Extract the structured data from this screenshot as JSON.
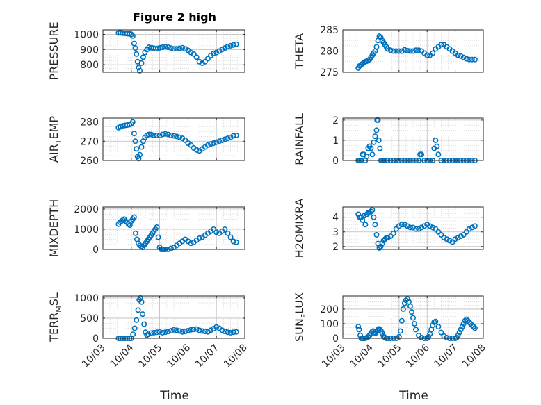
{
  "figure": {
    "title": "Figure 2 high",
    "xlabel": "Time",
    "x_ticks": [
      "10/03",
      "10/04",
      "10/05",
      "10/06",
      "10/07",
      "10/08"
    ]
  },
  "colors": {
    "marker": "#0072BD",
    "axis": "#262626",
    "grid": "#bdbdbd"
  },
  "chart_data": [
    {
      "type": "scatter",
      "ylabel": "PRESSURE",
      "ylim": [
        750,
        1030
      ],
      "yticks": [
        800,
        900,
        1000
      ],
      "grid": true,
      "xrange": [
        0,
        5
      ],
      "xticks": [
        0,
        1,
        2,
        3,
        4,
        5
      ],
      "x": [
        0.55,
        0.62,
        0.7,
        0.78,
        0.86,
        0.94,
        1.0,
        1.05,
        1.1,
        1.14,
        1.18,
        1.22,
        1.26,
        1.3,
        1.36,
        1.42,
        1.48,
        1.55,
        1.62,
        1.7,
        1.78,
        1.86,
        1.94,
        2.02,
        2.1,
        2.2,
        2.3,
        2.4,
        2.5,
        2.6,
        2.7,
        2.8,
        2.9,
        3.0,
        3.1,
        3.2,
        3.3,
        3.4,
        3.5,
        3.6,
        3.7,
        3.8,
        3.9,
        4.0,
        4.1,
        4.2,
        4.3,
        4.4,
        4.5,
        4.6,
        4.7
      ],
      "y": [
        1010,
        1010,
        1008,
        1007,
        1005,
        1003,
        1000,
        990,
        940,
        910,
        870,
        820,
        780,
        760,
        810,
        850,
        880,
        900,
        915,
        912,
        910,
        905,
        908,
        912,
        915,
        918,
        915,
        910,
        905,
        905,
        908,
        912,
        905,
        895,
        880,
        870,
        850,
        820,
        810,
        820,
        840,
        860,
        875,
        880,
        890,
        900,
        910,
        920,
        925,
        930,
        935
      ],
      "point_label": "pressure-point"
    },
    {
      "type": "scatter",
      "ylabel": "THETA",
      "ylim": [
        275,
        285
      ],
      "yticks": [
        275,
        280,
        285
      ],
      "grid": true,
      "xrange": [
        0,
        5
      ],
      "xticks": [
        0,
        1,
        2,
        3,
        4,
        5
      ],
      "x": [
        0.55,
        0.6,
        0.65,
        0.7,
        0.75,
        0.8,
        0.85,
        0.9,
        0.95,
        1.0,
        1.05,
        1.1,
        1.15,
        1.2,
        1.25,
        1.3,
        1.35,
        1.4,
        1.45,
        1.5,
        1.55,
        1.6,
        1.7,
        1.8,
        1.9,
        2.0,
        2.1,
        2.2,
        2.3,
        2.4,
        2.5,
        2.6,
        2.7,
        2.8,
        2.9,
        3.0,
        3.1,
        3.2,
        3.3,
        3.4,
        3.5,
        3.6,
        3.7,
        3.8,
        3.9,
        4.0,
        4.1,
        4.2,
        4.3,
        4.4,
        4.5,
        4.6,
        4.7
      ],
      "y": [
        276,
        276.5,
        276.8,
        277,
        277.3,
        277.5,
        277.6,
        277.8,
        278,
        278.5,
        279,
        279.5,
        280,
        281,
        282.5,
        283.5,
        283.2,
        282.5,
        282,
        281.5,
        281,
        280.5,
        280.2,
        280,
        280,
        280,
        280,
        280.3,
        280.1,
        280,
        280,
        280.2,
        280.2,
        280,
        279.5,
        279,
        279,
        279.5,
        280.5,
        281,
        281.5,
        281.5,
        281,
        280.5,
        280,
        279.5,
        279,
        278.8,
        278.5,
        278.2,
        278,
        278,
        278
      ],
      "point_label": "theta-point"
    },
    {
      "type": "scatter",
      "ylabel": "AIR_TEMP",
      "ylim": [
        260,
        282
      ],
      "yticks": [
        260,
        270,
        280
      ],
      "grid": true,
      "xrange": [
        0,
        5
      ],
      "xticks": [
        0,
        1,
        2,
        3,
        4,
        5
      ],
      "x": [
        0.55,
        0.62,
        0.7,
        0.78,
        0.86,
        0.94,
        1.0,
        1.05,
        1.1,
        1.14,
        1.18,
        1.22,
        1.26,
        1.3,
        1.36,
        1.42,
        1.48,
        1.55,
        1.62,
        1.7,
        1.8,
        1.9,
        2.0,
        2.1,
        2.2,
        2.3,
        2.4,
        2.5,
        2.6,
        2.7,
        2.8,
        2.9,
        3.0,
        3.1,
        3.2,
        3.3,
        3.4,
        3.5,
        3.6,
        3.7,
        3.8,
        3.9,
        4.0,
        4.1,
        4.2,
        4.3,
        4.4,
        4.5,
        4.6,
        4.7
      ],
      "y": [
        277,
        277.5,
        278,
        278.2,
        278.4,
        278.6,
        279,
        280,
        274,
        270,
        266,
        262,
        261,
        263,
        267,
        270,
        272,
        273,
        273.5,
        273.5,
        273,
        273,
        273,
        273.5,
        273.8,
        273.5,
        273,
        272.8,
        272.5,
        272,
        271.5,
        270.5,
        269,
        268,
        266.5,
        265.5,
        265,
        266,
        267,
        268,
        268.5,
        269,
        269.5,
        270,
        270.5,
        271,
        271.5,
        272,
        272.8,
        273
      ],
      "point_label": "air-temp-point"
    },
    {
      "type": "scatter",
      "ylabel": "RAINFALL",
      "ylim": [
        0,
        2.1
      ],
      "yticks": [
        0,
        1,
        2
      ],
      "grid": true,
      "xrange": [
        0,
        5
      ],
      "xticks": [
        0,
        1,
        2,
        3,
        4,
        5
      ],
      "x": [
        0.55,
        0.6,
        0.65,
        0.7,
        0.75,
        0.8,
        0.85,
        0.9,
        0.95,
        1.0,
        1.05,
        1.1,
        1.15,
        1.2,
        1.22,
        1.25,
        1.28,
        1.32,
        1.36,
        1.4,
        1.45,
        1.5,
        1.6,
        1.7,
        1.8,
        1.9,
        2.0,
        2.1,
        2.2,
        2.3,
        2.4,
        2.5,
        2.6,
        2.7,
        2.75,
        2.8,
        2.9,
        3.0,
        3.1,
        3.2,
        3.25,
        3.3,
        3.35,
        3.4,
        3.5,
        3.6,
        3.7,
        3.8,
        3.9,
        4.0,
        4.1,
        4.2,
        4.3,
        4.4,
        4.5,
        4.6,
        4.7
      ],
      "y": [
        0,
        0,
        0,
        0.3,
        0.3,
        0,
        0.2,
        0.6,
        0.7,
        0.6,
        0.3,
        0.9,
        1.2,
        1.5,
        2.0,
        2.0,
        1.0,
        0.6,
        0,
        0,
        0,
        0,
        0,
        0,
        0,
        0,
        0,
        0,
        0,
        0,
        0,
        0,
        0,
        0,
        0.3,
        0.3,
        0,
        0,
        0,
        0,
        0.6,
        1.0,
        0.7,
        0.3,
        0,
        0,
        0,
        0,
        0,
        0,
        0,
        0,
        0,
        0,
        0,
        0,
        0
      ],
      "point_label": "rainfall-point"
    },
    {
      "type": "scatter",
      "ylabel": "MIXDEPTH",
      "ylim": [
        0,
        2100
      ],
      "yticks": [
        0,
        1000,
        2000
      ],
      "grid": true,
      "xrange": [
        0,
        5
      ],
      "xticks": [
        0,
        1,
        2,
        3,
        4,
        5
      ],
      "x": [
        0.55,
        0.6,
        0.65,
        0.7,
        0.75,
        0.8,
        0.85,
        0.9,
        0.95,
        1.0,
        1.05,
        1.1,
        1.15,
        1.2,
        1.25,
        1.3,
        1.35,
        1.4,
        1.45,
        1.5,
        1.55,
        1.6,
        1.65,
        1.7,
        1.75,
        1.8,
        1.85,
        1.9,
        1.95,
        2.0,
        2.05,
        2.1,
        2.15,
        2.2,
        2.3,
        2.4,
        2.5,
        2.6,
        2.7,
        2.8,
        2.9,
        3.0,
        3.1,
        3.2,
        3.3,
        3.4,
        3.5,
        3.6,
        3.7,
        3.8,
        3.9,
        4.0,
        4.1,
        4.2,
        4.3,
        4.4,
        4.5,
        4.6,
        4.7
      ],
      "y": [
        1250,
        1350,
        1400,
        1450,
        1500,
        1400,
        1350,
        1250,
        1200,
        1400,
        1500,
        1600,
        800,
        500,
        300,
        200,
        150,
        100,
        200,
        300,
        400,
        500,
        600,
        700,
        800,
        900,
        1000,
        1100,
        600,
        100,
        0,
        0,
        0,
        0,
        0,
        50,
        100,
        200,
        300,
        400,
        500,
        400,
        300,
        350,
        450,
        550,
        600,
        700,
        800,
        900,
        1000,
        850,
        800,
        900,
        1000,
        800,
        600,
        400,
        350
      ],
      "point_label": "mixdepth-point"
    },
    {
      "type": "scatter",
      "ylabel": "H2OMIXRA",
      "ylim": [
        1.8,
        4.7
      ],
      "yticks": [
        2,
        3,
        4
      ],
      "grid": true,
      "xrange": [
        0,
        5
      ],
      "xticks": [
        0,
        1,
        2,
        3,
        4,
        5
      ],
      "x": [
        0.55,
        0.6,
        0.65,
        0.7,
        0.75,
        0.8,
        0.85,
        0.9,
        0.95,
        1.0,
        1.05,
        1.1,
        1.15,
        1.2,
        1.25,
        1.3,
        1.35,
        1.4,
        1.45,
        1.5,
        1.55,
        1.6,
        1.7,
        1.8,
        1.9,
        2.0,
        2.1,
        2.2,
        2.3,
        2.4,
        2.5,
        2.6,
        2.7,
        2.8,
        2.9,
        3.0,
        3.1,
        3.2,
        3.3,
        3.4,
        3.5,
        3.6,
        3.7,
        3.8,
        3.9,
        4.0,
        4.1,
        4.2,
        4.3,
        4.4,
        4.5,
        4.6,
        4.7
      ],
      "y": [
        4.2,
        4.0,
        4.0,
        3.8,
        4.1,
        3.5,
        4.2,
        4.3,
        4.3,
        4.4,
        4.5,
        4.0,
        3.5,
        2.8,
        2.2,
        1.9,
        2.0,
        2.2,
        2.4,
        2.5,
        2.6,
        2.6,
        2.7,
        2.9,
        3.2,
        3.4,
        3.5,
        3.5,
        3.4,
        3.3,
        3.3,
        3.2,
        3.2,
        3.3,
        3.4,
        3.5,
        3.4,
        3.3,
        3.2,
        3.0,
        2.8,
        2.6,
        2.5,
        2.4,
        2.3,
        2.5,
        2.6,
        2.7,
        2.8,
        3.0,
        3.2,
        3.3,
        3.4
      ],
      "point_label": "h2omixra-point"
    },
    {
      "type": "scatter",
      "ylabel": "TERR_MSL",
      "ylim": [
        0,
        1050
      ],
      "yticks": [
        0,
        500,
        1000
      ],
      "grid": true,
      "xrange": [
        0,
        5
      ],
      "xticks": [
        0,
        1,
        2,
        3,
        4,
        5
      ],
      "x": [
        0.55,
        0.62,
        0.7,
        0.78,
        0.86,
        0.94,
        1.0,
        1.06,
        1.12,
        1.18,
        1.24,
        1.28,
        1.32,
        1.36,
        1.4,
        1.45,
        1.5,
        1.55,
        1.6,
        1.7,
        1.8,
        1.9,
        2.0,
        2.1,
        2.2,
        2.3,
        2.4,
        2.5,
        2.6,
        2.7,
        2.8,
        2.9,
        3.0,
        3.1,
        3.2,
        3.3,
        3.4,
        3.5,
        3.6,
        3.7,
        3.8,
        3.9,
        4.0,
        4.1,
        4.2,
        4.3,
        4.4,
        4.5,
        4.6,
        4.7
      ],
      "y": [
        0,
        0,
        0,
        0,
        0,
        0,
        0,
        100,
        250,
        450,
        700,
        950,
        1000,
        900,
        600,
        350,
        150,
        80,
        100,
        130,
        140,
        150,
        160,
        140,
        150,
        170,
        190,
        210,
        200,
        180,
        160,
        170,
        190,
        210,
        220,
        230,
        200,
        180,
        170,
        160,
        200,
        240,
        280,
        250,
        200,
        170,
        150,
        140,
        150,
        160
      ],
      "point_label": "terr-msl-point"
    },
    {
      "type": "scatter",
      "ylabel": "SUN_FLUX",
      "ylim": [
        0,
        290
      ],
      "yticks": [
        0,
        100,
        200
      ],
      "grid": true,
      "xrange": [
        0,
        5
      ],
      "xticks": [
        0,
        1,
        2,
        3,
        4,
        5
      ],
      "x": [
        0.55,
        0.58,
        0.62,
        0.66,
        0.7,
        0.75,
        0.8,
        0.85,
        0.9,
        0.95,
        1.0,
        1.04,
        1.08,
        1.12,
        1.16,
        1.2,
        1.24,
        1.28,
        1.32,
        1.36,
        1.4,
        1.45,
        1.5,
        1.55,
        1.6,
        1.7,
        1.8,
        1.9,
        2.0,
        2.05,
        2.1,
        2.15,
        2.2,
        2.25,
        2.3,
        2.35,
        2.4,
        2.45,
        2.5,
        2.55,
        2.6,
        2.7,
        2.8,
        2.9,
        3.0,
        3.05,
        3.1,
        3.15,
        3.2,
        3.25,
        3.3,
        3.4,
        3.5,
        3.6,
        3.7,
        3.8,
        3.9,
        4.0,
        4.05,
        4.1,
        4.15,
        4.2,
        4.25,
        4.3,
        4.35,
        4.4,
        4.45,
        4.5,
        4.55,
        4.6,
        4.65,
        4.7
      ],
      "y": [
        80,
        60,
        20,
        0,
        0,
        0,
        0,
        5,
        10,
        20,
        35,
        45,
        50,
        40,
        35,
        45,
        55,
        65,
        60,
        50,
        35,
        15,
        5,
        0,
        0,
        0,
        0,
        0,
        10,
        50,
        120,
        200,
        240,
        260,
        270,
        250,
        220,
        180,
        140,
        100,
        60,
        20,
        5,
        0,
        0,
        10,
        30,
        60,
        90,
        110,
        115,
        80,
        40,
        15,
        5,
        0,
        0,
        0,
        5,
        20,
        40,
        60,
        80,
        100,
        120,
        130,
        120,
        110,
        100,
        90,
        80,
        70
      ],
      "point_label": "sun-flux-point"
    }
  ]
}
